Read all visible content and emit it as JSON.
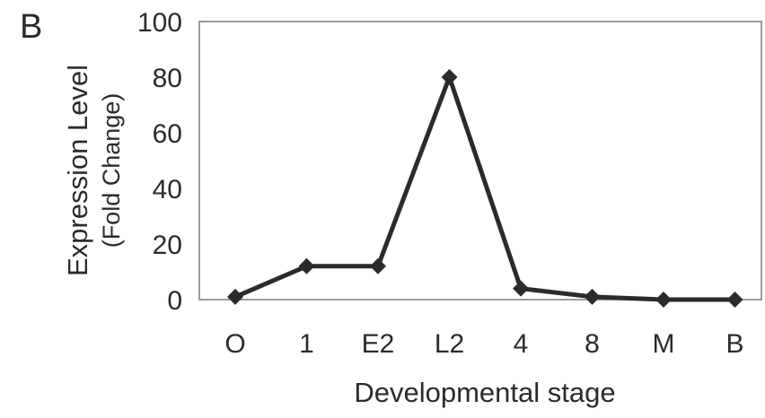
{
  "panel_label": "B",
  "chart_data": {
    "type": "line",
    "categories": [
      "O",
      "1",
      "E2",
      "L2",
      "4",
      "8",
      "M",
      "B"
    ],
    "series": [
      {
        "values": [
          1,
          12,
          12,
          80,
          4,
          1,
          0,
          0
        ]
      }
    ],
    "xlabel": "Developmental stage",
    "ylabel": "Expression Level",
    "ylabel_sub": "(Fold Change)",
    "ylim": [
      0,
      100
    ],
    "yticks": [
      0,
      20,
      40,
      60,
      80,
      100
    ],
    "grid": false,
    "marker": "diamond",
    "line_color": "#2b2b2b",
    "frame_color": "#7a7a7a"
  }
}
